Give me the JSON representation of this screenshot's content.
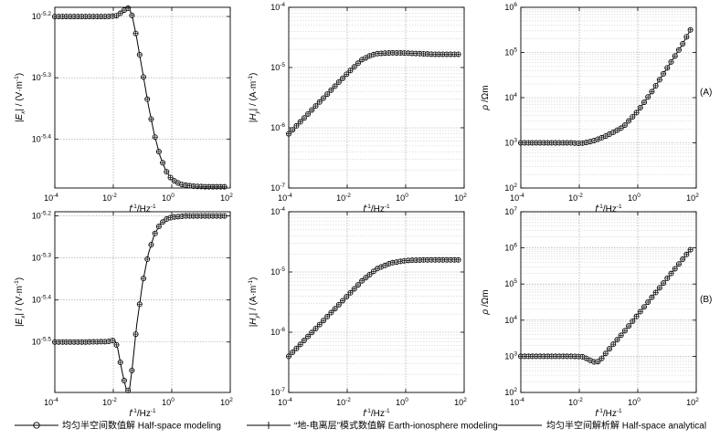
{
  "figure": {
    "panel_labels": [
      "(A)",
      "(B)"
    ],
    "legend": [
      {
        "label": "均匀半空间数值解 Half-space modeling",
        "marker": "circle-plus"
      },
      {
        "label": "“地-电离层”模式数值解 Earth-ionosphere modeling",
        "marker": "plus"
      },
      {
        "label": "均匀半空间解析解 Half-space analytical",
        "marker": "line"
      }
    ],
    "x_axis": {
      "label_base": "f",
      "label_exp": "-1",
      "label_unit": "/Hz",
      "label_unit_exp": "-1",
      "tick_exponents": [
        "-4",
        "-2",
        "0",
        "2"
      ]
    }
  },
  "chart_data": [
    {
      "id": "A-Ex",
      "type": "line",
      "row": 0,
      "col": 0,
      "ylabel": {
        "pre": "|E",
        "sub": "x",
        "post": "| / (V·m",
        "post_exp": "-1",
        "close": ")"
      },
      "xlim": [
        -4,
        2
      ],
      "ylim": [
        -5.48,
        -5.185
      ],
      "ytick_labels": [
        {
          "v": -5.2,
          "t": "-5.2"
        },
        {
          "v": -5.3,
          "t": "-5.3"
        },
        {
          "v": -5.4,
          "t": "-5.4"
        }
      ],
      "minor_grid": false,
      "points": [
        [
          -4,
          -5.2
        ],
        [
          -3,
          -5.2
        ],
        [
          -2.2,
          -5.2
        ],
        [
          -1.9,
          -5.199
        ],
        [
          -1.7,
          -5.193
        ],
        [
          -1.55,
          -5.186
        ],
        [
          -1.45,
          -5.187
        ],
        [
          -1.35,
          -5.2
        ],
        [
          -1.2,
          -5.235
        ],
        [
          -1.0,
          -5.29
        ],
        [
          -0.8,
          -5.345
        ],
        [
          -0.6,
          -5.392
        ],
        [
          -0.4,
          -5.428
        ],
        [
          -0.2,
          -5.452
        ],
        [
          0,
          -5.466
        ],
        [
          0.3,
          -5.474
        ],
        [
          0.7,
          -5.477
        ],
        [
          1.2,
          -5.478
        ],
        [
          1.8,
          -5.478
        ]
      ]
    },
    {
      "id": "A-Hy",
      "type": "line",
      "row": 0,
      "col": 1,
      "ylabel": {
        "pre": "|H",
        "sub": "y",
        "post": "| / (A·m",
        "post_exp": "-1",
        "close": ")"
      },
      "xlim": [
        -4,
        2
      ],
      "ylim": [
        -7,
        -4
      ],
      "ytick_labels": [
        {
          "v": -4,
          "t": "-4"
        },
        {
          "v": -5,
          "t": "-5"
        },
        {
          "v": -6,
          "t": "-6"
        },
        {
          "v": -7,
          "t": "-7"
        }
      ],
      "minor_grid": true,
      "points": [
        [
          -4,
          -6.1
        ],
        [
          -3.5,
          -5.85
        ],
        [
          -3,
          -5.6
        ],
        [
          -2.5,
          -5.35
        ],
        [
          -2,
          -5.1
        ],
        [
          -1.5,
          -4.87
        ],
        [
          -1.2,
          -4.8
        ],
        [
          -1,
          -4.77
        ],
        [
          -0.5,
          -4.755
        ],
        [
          0,
          -4.76
        ],
        [
          0.5,
          -4.77
        ],
        [
          1,
          -4.78
        ],
        [
          1.5,
          -4.78
        ],
        [
          1.8,
          -4.78
        ]
      ]
    },
    {
      "id": "A-rho",
      "type": "line",
      "row": 0,
      "col": 2,
      "ylabel": {
        "pre": "ρ",
        "sub": "",
        "post": " /Ωm",
        "post_exp": "",
        "close": ""
      },
      "xlim": [
        -4,
        2
      ],
      "ylim": [
        2,
        6
      ],
      "ytick_labels": [
        {
          "v": 2,
          "t": "2"
        },
        {
          "v": 3,
          "t": "3"
        },
        {
          "v": 4,
          "t": "4"
        },
        {
          "v": 5,
          "t": "5"
        },
        {
          "v": 6,
          "t": "6"
        }
      ],
      "minor_grid": true,
      "points": [
        [
          -4,
          3
        ],
        [
          -3,
          3
        ],
        [
          -2.3,
          3
        ],
        [
          -2,
          2.99
        ],
        [
          -1.8,
          3.0
        ],
        [
          -1.5,
          3.05
        ],
        [
          -1.2,
          3.12
        ],
        [
          -1,
          3.18
        ],
        [
          -0.5,
          3.35
        ],
        [
          0,
          3.7
        ],
        [
          0.5,
          4.15
        ],
        [
          1,
          4.65
        ],
        [
          1.5,
          5.15
        ],
        [
          1.8,
          5.5
        ]
      ]
    },
    {
      "id": "B-Ex",
      "type": "line",
      "row": 1,
      "col": 0,
      "ylabel": {
        "pre": "|E",
        "sub": "x",
        "post": "| / (V·m",
        "post_exp": "-1",
        "close": ")"
      },
      "xlim": [
        -4,
        2
      ],
      "ylim": [
        -5.62,
        -5.19
      ],
      "ytick_labels": [
        {
          "v": -5.2,
          "t": "-5.2"
        },
        {
          "v": -5.3,
          "t": "-5.3"
        },
        {
          "v": -5.4,
          "t": "-5.4"
        },
        {
          "v": -5.5,
          "t": "-5.5"
        }
      ],
      "minor_grid": false,
      "points": [
        [
          -4,
          -5.5
        ],
        [
          -3,
          -5.5
        ],
        [
          -2.2,
          -5.499
        ],
        [
          -1.95,
          -5.495
        ],
        [
          -1.85,
          -5.515
        ],
        [
          -1.7,
          -5.57
        ],
        [
          -1.55,
          -5.615
        ],
        [
          -1.45,
          -5.615
        ],
        [
          -1.35,
          -5.56
        ],
        [
          -1.2,
          -5.46
        ],
        [
          -1.0,
          -5.36
        ],
        [
          -0.8,
          -5.29
        ],
        [
          -0.6,
          -5.245
        ],
        [
          -0.4,
          -5.22
        ],
        [
          -0.2,
          -5.208
        ],
        [
          0,
          -5.203
        ],
        [
          0.5,
          -5.2
        ],
        [
          1.2,
          -5.2
        ],
        [
          1.8,
          -5.2
        ]
      ]
    },
    {
      "id": "B-Hy",
      "type": "line",
      "row": 1,
      "col": 1,
      "ylabel": {
        "pre": "|H",
        "sub": "y",
        "post": "| / (A·m",
        "post_exp": "-1",
        "close": ")"
      },
      "xlim": [
        -4,
        2
      ],
      "ylim": [
        -7,
        -4
      ],
      "ytick_labels": [
        {
          "v": -4,
          "t": "-4"
        },
        {
          "v": -5,
          "t": "-5"
        },
        {
          "v": -6,
          "t": "-6"
        },
        {
          "v": -7,
          "t": "-7"
        }
      ],
      "minor_grid": true,
      "points": [
        [
          -4,
          -6.4
        ],
        [
          -3.5,
          -6.15
        ],
        [
          -3,
          -5.9
        ],
        [
          -2.5,
          -5.65
        ],
        [
          -2,
          -5.4
        ],
        [
          -1.5,
          -5.15
        ],
        [
          -1,
          -4.95
        ],
        [
          -0.5,
          -4.85
        ],
        [
          0,
          -4.81
        ],
        [
          0.5,
          -4.8
        ],
        [
          1,
          -4.8
        ],
        [
          1.5,
          -4.8
        ],
        [
          1.8,
          -4.8
        ]
      ]
    },
    {
      "id": "B-rho",
      "type": "line",
      "row": 1,
      "col": 2,
      "ylabel": {
        "pre": "ρ",
        "sub": "",
        "post": " /Ωm",
        "post_exp": "",
        "close": ""
      },
      "xlim": [
        -4,
        2
      ],
      "ylim": [
        2,
        7
      ],
      "ytick_labels": [
        {
          "v": 2,
          "t": "2"
        },
        {
          "v": 3,
          "t": "3"
        },
        {
          "v": 4,
          "t": "4"
        },
        {
          "v": 5,
          "t": "5"
        },
        {
          "v": 6,
          "t": "6"
        },
        {
          "v": 7,
          "t": "7"
        }
      ],
      "minor_grid": true,
      "points": [
        [
          -4,
          3
        ],
        [
          -3,
          3
        ],
        [
          -2.2,
          3
        ],
        [
          -1.9,
          2.99
        ],
        [
          -1.8,
          2.96
        ],
        [
          -1.6,
          2.88
        ],
        [
          -1.45,
          2.83
        ],
        [
          -1.3,
          2.87
        ],
        [
          -1.2,
          2.98
        ],
        [
          -1,
          3.18
        ],
        [
          -0.5,
          3.65
        ],
        [
          0,
          4.15
        ],
        [
          0.5,
          4.65
        ],
        [
          1,
          5.15
        ],
        [
          1.5,
          5.65
        ],
        [
          1.8,
          5.95
        ]
      ]
    }
  ]
}
